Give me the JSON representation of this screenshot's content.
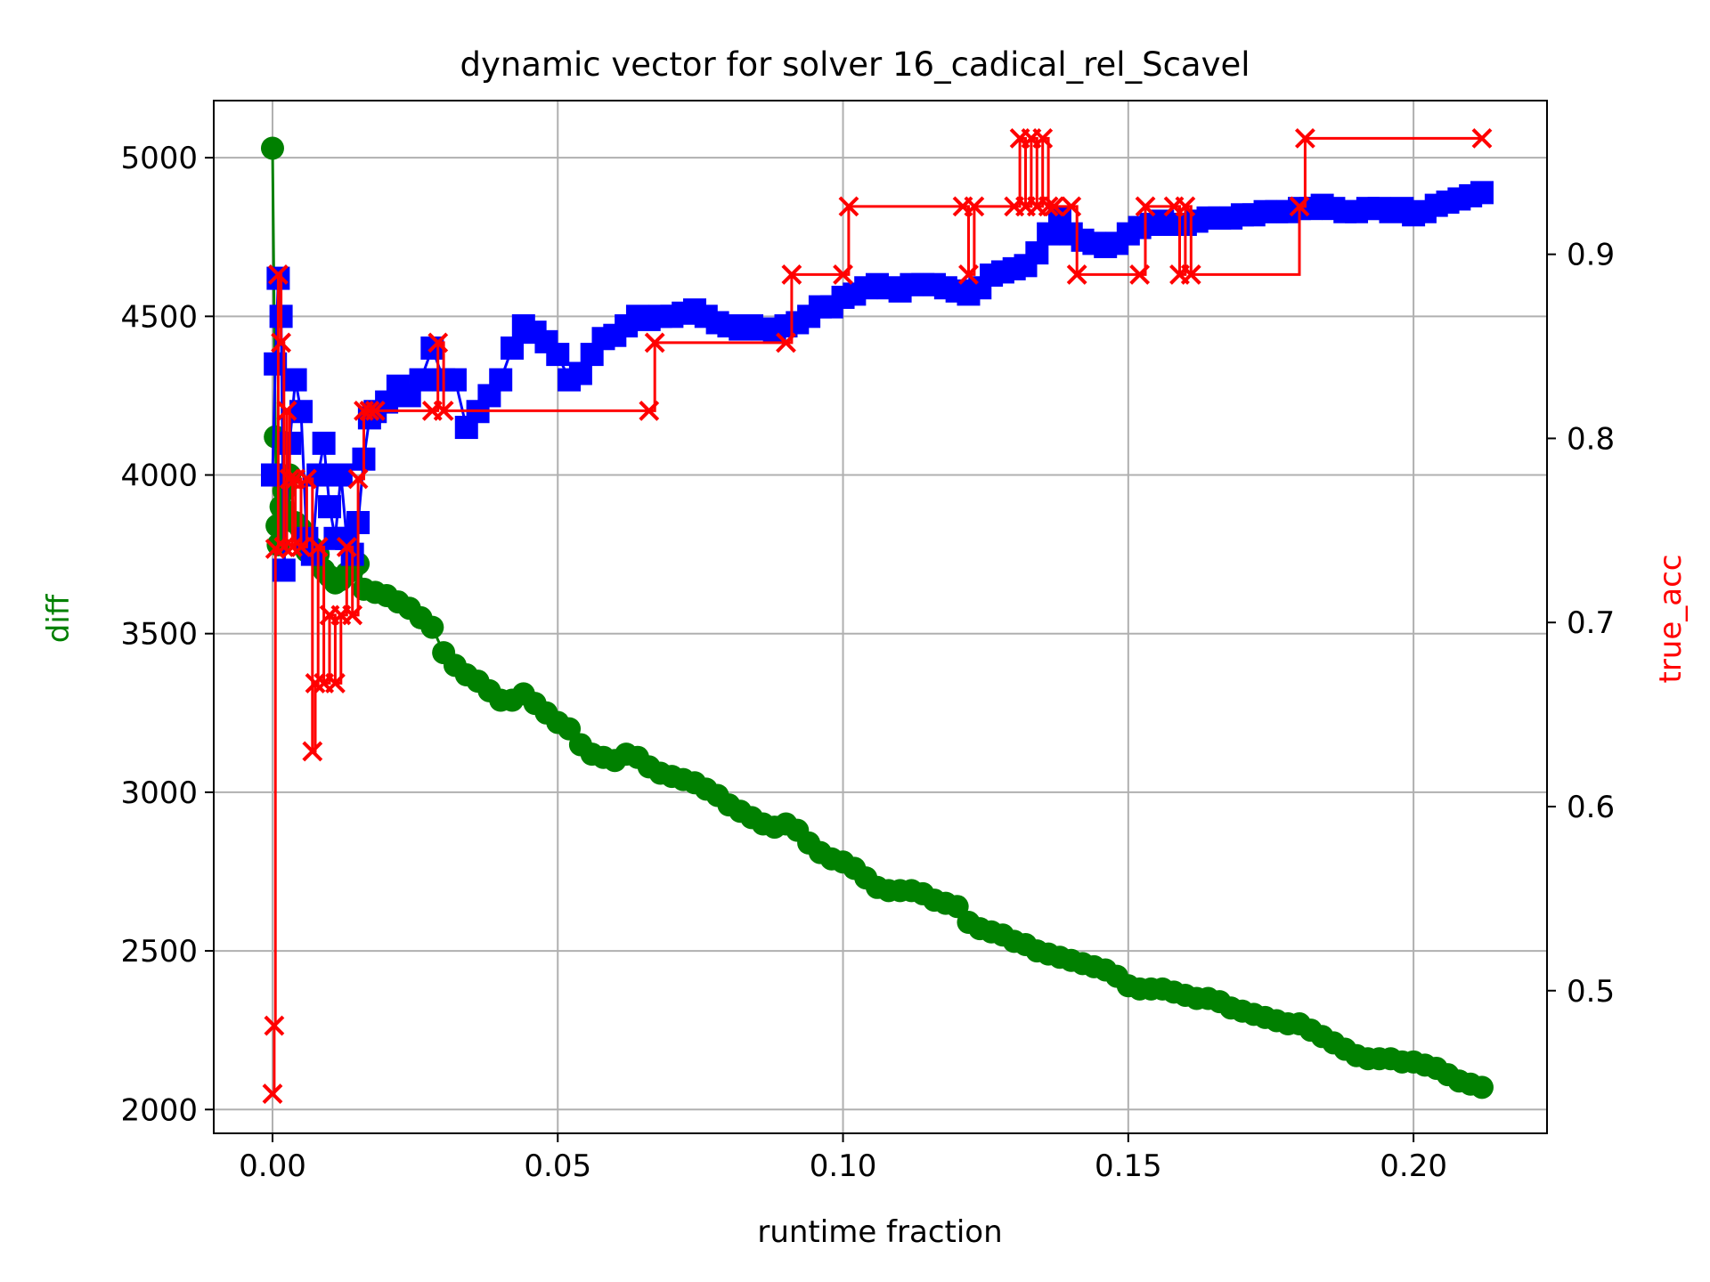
{
  "chart_data": {
    "type": "line",
    "title": "dynamic vector for solver 16_cadical_rel_Scavel",
    "xlabel": "runtime fraction",
    "ylabel_left": "diff",
    "ylabel_right": "true_acc",
    "xlim": [
      -0.0103,
      0.2234
    ],
    "ylim_left": [
      1925,
      5180
    ],
    "ylim_right": [
      0.4225,
      0.9835
    ],
    "x_ticks": [
      0.0,
      0.05,
      0.1,
      0.15,
      0.2
    ],
    "x_tick_labels": [
      "0.00",
      "0.05",
      "0.10",
      "0.15",
      "0.20"
    ],
    "y_left_ticks": [
      2000,
      2500,
      3000,
      3500,
      4000,
      4500,
      5000
    ],
    "y_left_tick_labels": [
      "2000",
      "2500",
      "3000",
      "3500",
      "4000",
      "4500",
      "5000"
    ],
    "y_right_ticks": [
      0.5,
      0.6,
      0.7,
      0.8,
      0.9
    ],
    "y_right_tick_labels": [
      "0.5",
      "0.6",
      "0.7",
      "0.8",
      "0.9"
    ],
    "grid": true,
    "colors": {
      "diff": "#008000",
      "blue_series": "#0000ff",
      "true_acc": "#ff0000"
    },
    "series": [
      {
        "axis": "left",
        "color": "#008000",
        "marker": "circle",
        "x": [
          0.0,
          0.0005,
          0.0008,
          0.001,
          0.0015,
          0.002,
          0.003,
          0.004,
          0.005,
          0.006,
          0.007,
          0.008,
          0.009,
          0.01,
          0.011,
          0.012,
          0.013,
          0.014,
          0.015,
          0.016,
          0.018,
          0.02,
          0.022,
          0.024,
          0.026,
          0.028,
          0.03,
          0.032,
          0.034,
          0.036,
          0.038,
          0.04,
          0.042,
          0.044,
          0.046,
          0.048,
          0.05,
          0.052,
          0.054,
          0.056,
          0.058,
          0.06,
          0.062,
          0.064,
          0.066,
          0.068,
          0.07,
          0.072,
          0.074,
          0.076,
          0.078,
          0.08,
          0.082,
          0.084,
          0.086,
          0.088,
          0.09,
          0.092,
          0.094,
          0.096,
          0.098,
          0.1,
          0.102,
          0.104,
          0.106,
          0.108,
          0.11,
          0.112,
          0.114,
          0.116,
          0.118,
          0.12,
          0.122,
          0.124,
          0.126,
          0.128,
          0.13,
          0.132,
          0.134,
          0.136,
          0.138,
          0.14,
          0.142,
          0.144,
          0.146,
          0.148,
          0.15,
          0.152,
          0.154,
          0.156,
          0.158,
          0.16,
          0.162,
          0.164,
          0.166,
          0.168,
          0.17,
          0.172,
          0.174,
          0.176,
          0.178,
          0.18,
          0.182,
          0.184,
          0.186,
          0.188,
          0.19,
          0.192,
          0.194,
          0.196,
          0.198,
          0.2,
          0.202,
          0.204,
          0.206,
          0.208,
          0.21,
          0.212
        ],
        "y": [
          5030,
          4120,
          3840,
          3780,
          3900,
          3950,
          4000,
          3850,
          3830,
          3760,
          3770,
          3750,
          3700,
          3680,
          3660,
          3670,
          3690,
          3700,
          3720,
          3640,
          3630,
          3620,
          3600,
          3580,
          3550,
          3520,
          3440,
          3400,
          3370,
          3350,
          3320,
          3290,
          3290,
          3310,
          3280,
          3250,
          3220,
          3200,
          3150,
          3120,
          3110,
          3100,
          3120,
          3110,
          3080,
          3060,
          3050,
          3040,
          3030,
          3010,
          2990,
          2960,
          2940,
          2920,
          2900,
          2890,
          2900,
          2880,
          2840,
          2810,
          2790,
          2780,
          2760,
          2730,
          2700,
          2690,
          2690,
          2690,
          2680,
          2660,
          2650,
          2640,
          2590,
          2570,
          2560,
          2550,
          2530,
          2520,
          2500,
          2490,
          2480,
          2470,
          2460,
          2450,
          2440,
          2420,
          2390,
          2380,
          2380,
          2380,
          2370,
          2360,
          2350,
          2350,
          2340,
          2320,
          2310,
          2300,
          2290,
          2280,
          2270,
          2270,
          2250,
          2230,
          2210,
          2190,
          2170,
          2160,
          2160,
          2160,
          2150,
          2150,
          2140,
          2130,
          2110,
          2090,
          2080,
          2070
        ]
      },
      {
        "axis": "left",
        "color": "#0000ff",
        "marker": "square",
        "x": [
          0.0,
          0.0005,
          0.001,
          0.0015,
          0.002,
          0.003,
          0.004,
          0.005,
          0.006,
          0.007,
          0.008,
          0.009,
          0.01,
          0.011,
          0.012,
          0.013,
          0.014,
          0.015,
          0.016,
          0.017,
          0.018,
          0.02,
          0.022,
          0.024,
          0.026,
          0.028,
          0.03,
          0.032,
          0.034,
          0.036,
          0.038,
          0.04,
          0.042,
          0.044,
          0.046,
          0.048,
          0.05,
          0.052,
          0.054,
          0.056,
          0.058,
          0.06,
          0.062,
          0.064,
          0.066,
          0.068,
          0.07,
          0.072,
          0.074,
          0.076,
          0.078,
          0.08,
          0.082,
          0.084,
          0.086,
          0.088,
          0.09,
          0.092,
          0.094,
          0.096,
          0.098,
          0.1,
          0.102,
          0.104,
          0.106,
          0.108,
          0.11,
          0.112,
          0.114,
          0.116,
          0.118,
          0.12,
          0.122,
          0.124,
          0.126,
          0.128,
          0.13,
          0.132,
          0.134,
          0.136,
          0.138,
          0.14,
          0.142,
          0.144,
          0.146,
          0.148,
          0.15,
          0.152,
          0.154,
          0.156,
          0.158,
          0.16,
          0.162,
          0.164,
          0.166,
          0.168,
          0.17,
          0.172,
          0.174,
          0.176,
          0.178,
          0.18,
          0.182,
          0.184,
          0.186,
          0.188,
          0.19,
          0.192,
          0.194,
          0.196,
          0.198,
          0.2,
          0.202,
          0.204,
          0.206,
          0.208,
          0.21,
          0.212
        ],
        "y": [
          4000,
          4350,
          4620,
          4500,
          3700,
          4100,
          4300,
          4200,
          3800,
          3750,
          4000,
          4100,
          3900,
          3800,
          4000,
          3800,
          3750,
          3850,
          4050,
          4180,
          4200,
          4230,
          4280,
          4250,
          4300,
          4400,
          4300,
          4300,
          4150,
          4200,
          4250,
          4300,
          4400,
          4470,
          4450,
          4420,
          4380,
          4300,
          4320,
          4380,
          4430,
          4440,
          4470,
          4500,
          4490,
          4500,
          4500,
          4510,
          4520,
          4500,
          4480,
          4470,
          4460,
          4470,
          4460,
          4450,
          4470,
          4480,
          4500,
          4530,
          4530,
          4560,
          4570,
          4590,
          4600,
          4590,
          4580,
          4600,
          4600,
          4600,
          4590,
          4580,
          4570,
          4590,
          4630,
          4640,
          4650,
          4660,
          4700,
          4760,
          4810,
          4760,
          4740,
          4730,
          4720,
          4730,
          4760,
          4780,
          4790,
          4800,
          4790,
          4790,
          4800,
          4810,
          4810,
          4810,
          4820,
          4820,
          4830,
          4830,
          4830,
          4840,
          4840,
          4850,
          4840,
          4830,
          4830,
          4840,
          4840,
          4830,
          4840,
          4820,
          4830,
          4850,
          4860,
          4870,
          4880,
          4890
        ]
      },
      {
        "axis": "right",
        "color": "#ff0000",
        "marker": "x",
        "x": [
          0.0,
          0.0003,
          0.0005,
          0.001,
          0.0015,
          0.002,
          0.0025,
          0.003,
          0.0035,
          0.004,
          0.005,
          0.006,
          0.007,
          0.0075,
          0.008,
          0.009,
          0.01,
          0.011,
          0.012,
          0.013,
          0.014,
          0.015,
          0.016,
          0.017,
          0.018,
          0.028,
          0.029,
          0.03,
          0.066,
          0.067,
          0.09,
          0.091,
          0.1,
          0.101,
          0.121,
          0.122,
          0.123,
          0.13,
          0.131,
          0.132,
          0.133,
          0.134,
          0.135,
          0.136,
          0.137,
          0.14,
          0.141,
          0.152,
          0.153,
          0.158,
          0.159,
          0.16,
          0.161,
          0.18,
          0.181,
          0.212
        ],
        "y": [
          0.444,
          0.481,
          0.74,
          0.889,
          0.852,
          0.741,
          0.815,
          0.778,
          0.741,
          0.778,
          0.741,
          0.778,
          0.63,
          0.667,
          0.741,
          0.667,
          0.704,
          0.667,
          0.704,
          0.741,
          0.704,
          0.778,
          0.815,
          0.815,
          0.815,
          0.815,
          0.852,
          0.815,
          0.815,
          0.852,
          0.852,
          0.889,
          0.889,
          0.926,
          0.926,
          0.889,
          0.926,
          0.926,
          0.963,
          0.926,
          0.963,
          0.926,
          0.963,
          0.926,
          0.926,
          0.926,
          0.889,
          0.889,
          0.926,
          0.926,
          0.889,
          0.926,
          0.889,
          0.926,
          0.963,
          0.963
        ]
      }
    ]
  }
}
